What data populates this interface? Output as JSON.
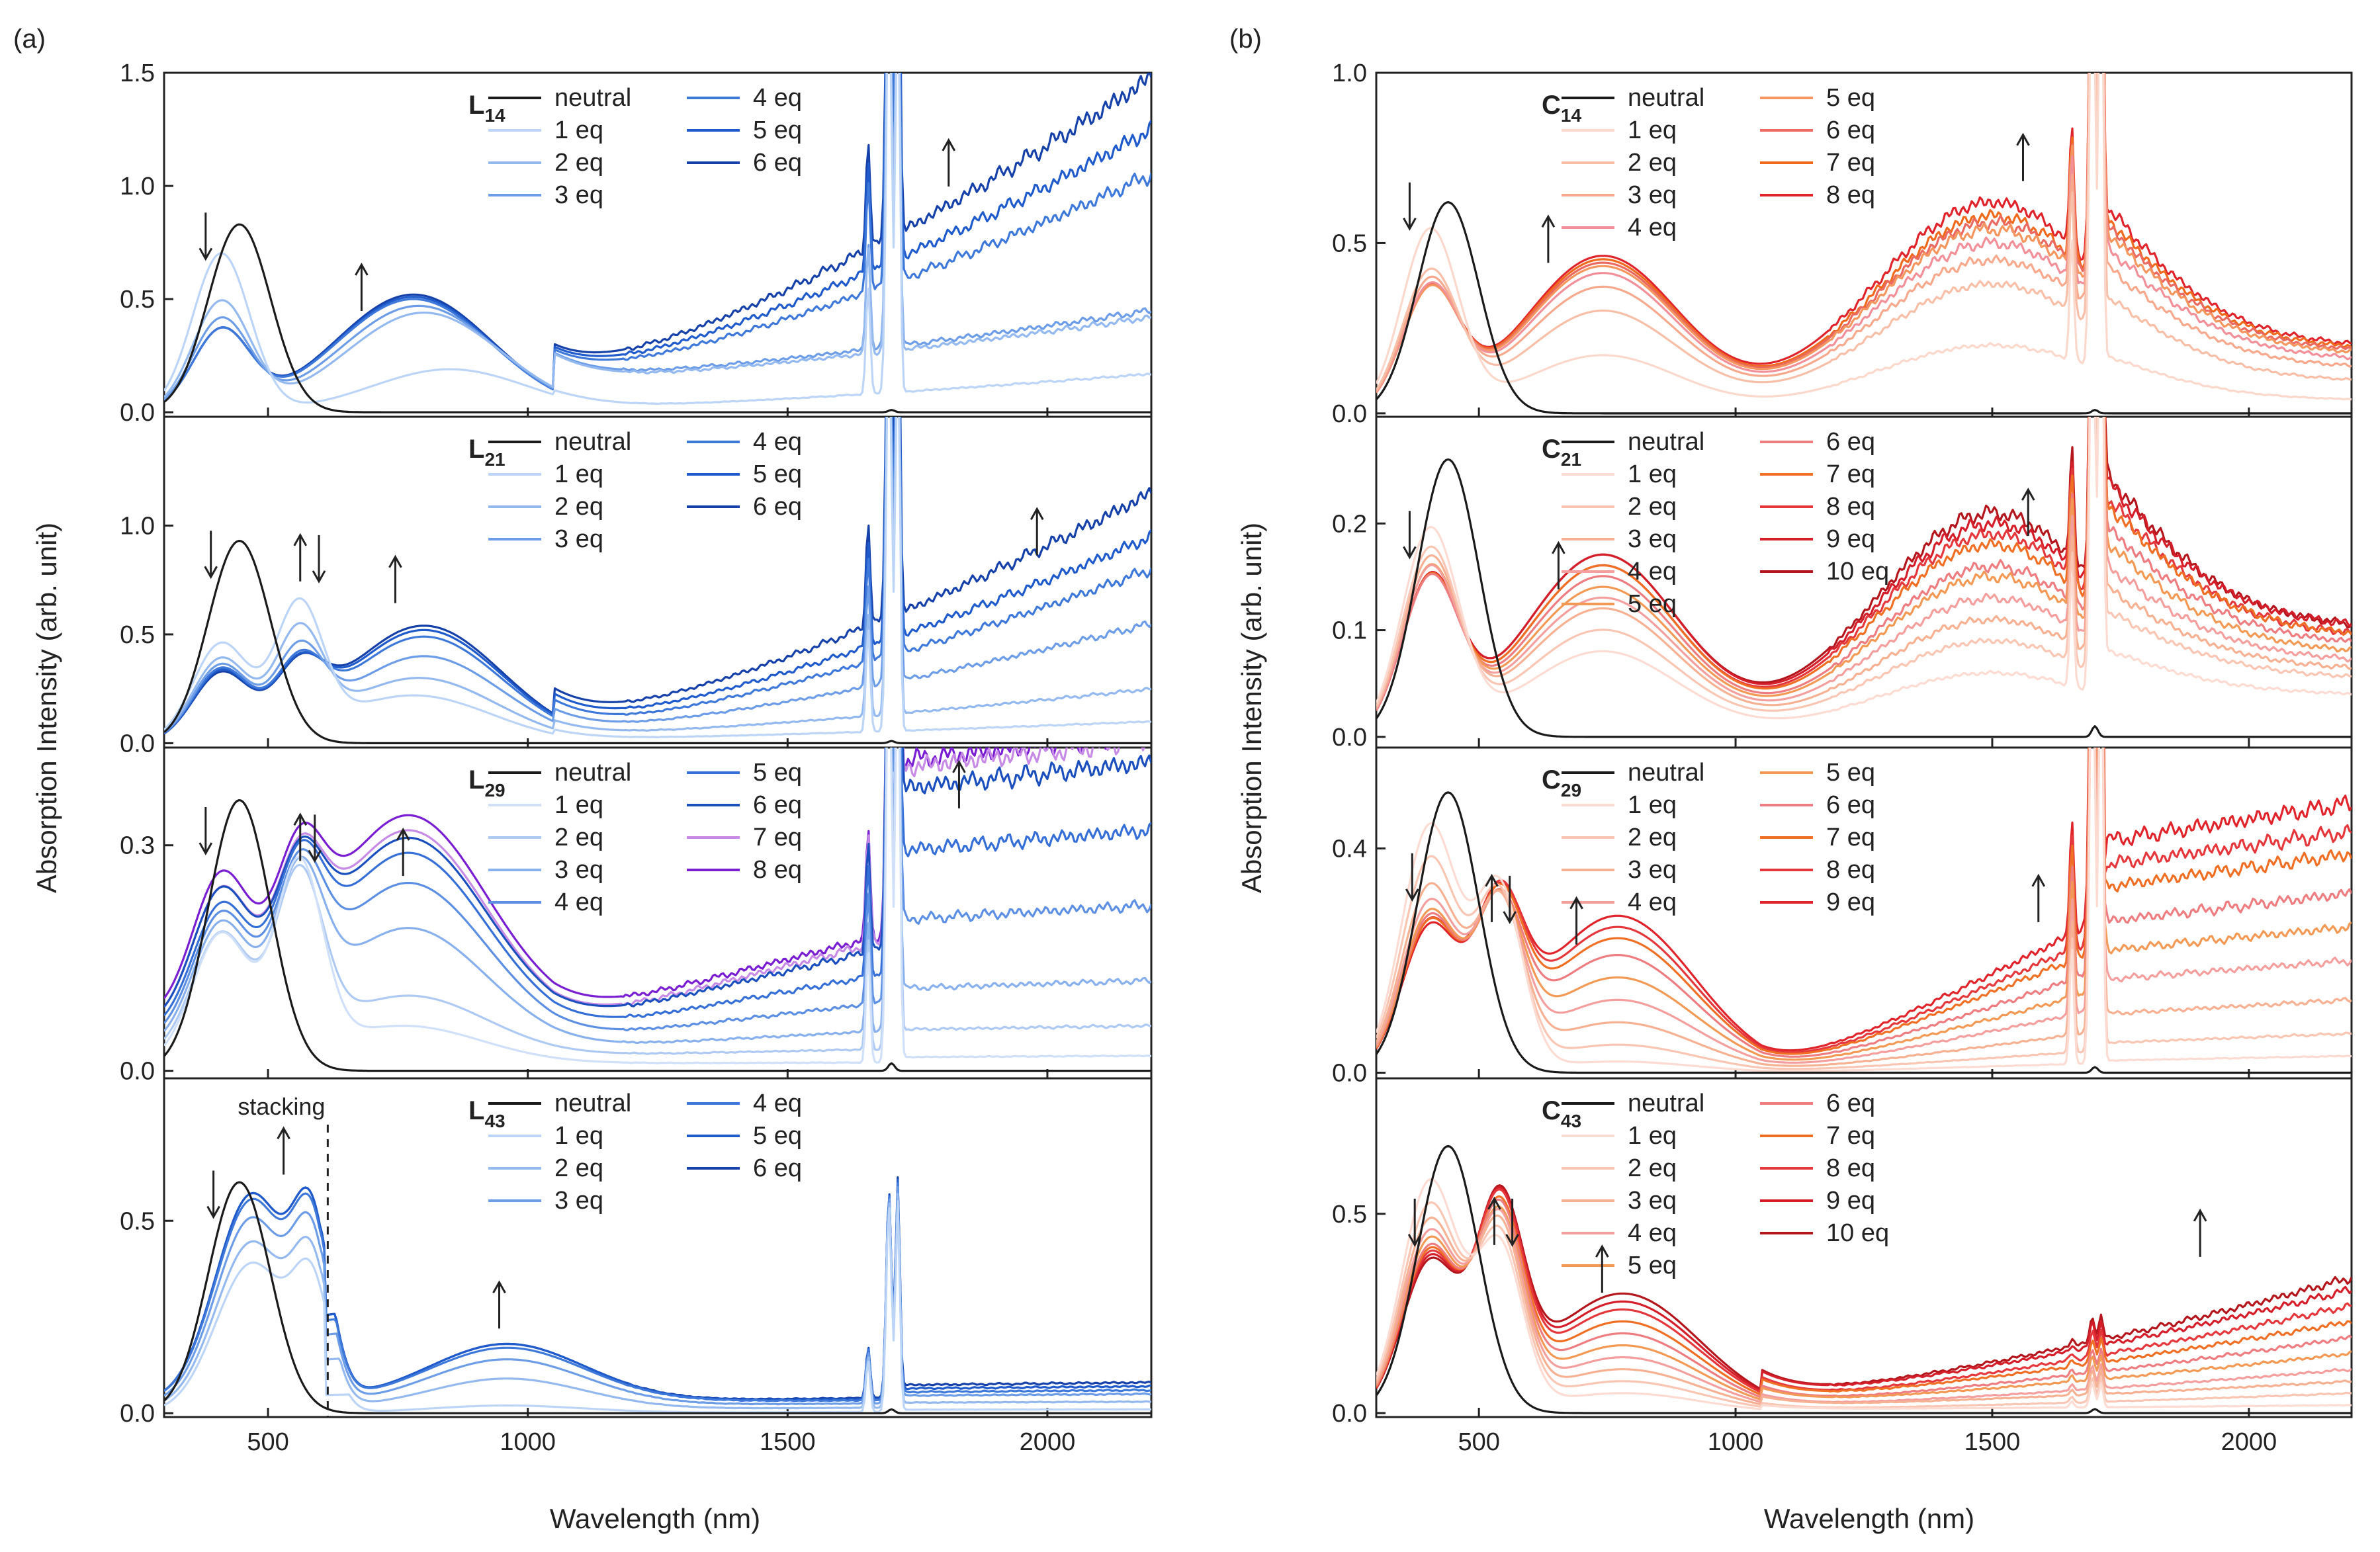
{
  "figure": {
    "panel_letters": [
      "(a)",
      "(b)"
    ],
    "xlabel": "Wavelength (nm)",
    "ylabel": "Absorption Intensity (arb. unit)"
  },
  "chart_data": [
    {
      "id": "L14",
      "column": 0,
      "row": 0,
      "type": "line",
      "label_main": "L",
      "label_sub": "14",
      "xlim": [
        300,
        2200
      ],
      "ylim": [
        -0.02,
        1.5
      ],
      "yticks": [
        0.0,
        0.5,
        1.0,
        1.5
      ],
      "ytick_labels": [
        "0.0",
        "0.5",
        "1.0",
        "1.5"
      ],
      "xticks": [
        500,
        1000,
        1500,
        2000
      ],
      "xtick_labels": [
        "500",
        "1000",
        "1500",
        "2000"
      ],
      "legend": [
        "neutral",
        "1 eq",
        "2 eq",
        "3 eq",
        "4 eq",
        "5 eq",
        "6 eq"
      ],
      "colors": [
        "#1a1a1a",
        "#bcd5f6",
        "#94b9ef",
        "#6c9de6",
        "#3e79da",
        "#1f5bcb",
        "#1541a8"
      ],
      "params": {
        "neutralPeak": 0.83,
        "neutralX": 445,
        "b1": [
          0.7,
          0.48,
          0.4,
          0.35,
          0.35,
          0.35
        ],
        "b2": [
          0.19,
          0.44,
          0.47,
          0.5,
          0.51,
          0.52
        ],
        "x2": [
          850,
          800,
          790,
          780,
          780,
          780
        ],
        "nirEnd": [
          0.17,
          0.42,
          0.45,
          1.05,
          1.25,
          1.48
        ],
        "nirStart": [
          0.02,
          0.15,
          0.16,
          0.18,
          0.19,
          0.2
        ],
        "nirShape": "rise",
        "spike": 1.6
      },
      "arrows": [
        {
          "x": 380,
          "y": 0.78,
          "dir": "down"
        },
        {
          "x": 680,
          "y": 0.55,
          "dir": "up"
        },
        {
          "x": 1810,
          "y": 1.1,
          "dir": "up"
        }
      ]
    },
    {
      "id": "L21",
      "column": 0,
      "row": 1,
      "type": "line",
      "label_main": "L",
      "label_sub": "21",
      "xlim": [
        300,
        2200
      ],
      "ylim": [
        -0.02,
        1.5
      ],
      "yticks": [
        0.0,
        0.5,
        1.0
      ],
      "ytick_labels": [
        "0.0",
        "0.5",
        "1.0"
      ],
      "xticks": [
        500,
        1000,
        1500,
        2000
      ],
      "xtick_labels": [
        "500",
        "1000",
        "1500",
        "2000"
      ],
      "legend": [
        "neutral",
        "1 eq",
        "2 eq",
        "3 eq",
        "4 eq",
        "5 eq",
        "6 eq"
      ],
      "colors": [
        "#1a1a1a",
        "#bcd5f6",
        "#94b9ef",
        "#6c9de6",
        "#3e79da",
        "#1f5bcb",
        "#1541a8"
      ],
      "params": {
        "neutralPeak": 0.93,
        "neutralX": 445,
        "b1": [
          0.45,
          0.38,
          0.35,
          0.33,
          0.32,
          0.31
        ],
        "b2": [
          0.22,
          0.3,
          0.4,
          0.49,
          0.52,
          0.54
        ],
        "x2": [
          780,
          790,
          800,
          800,
          800,
          800
        ],
        "x1b": 560,
        "b1b": [
          0.58,
          0.45,
          0.35,
          0.28,
          0.26,
          0.25
        ],
        "nirEnd": [
          0.1,
          0.25,
          0.55,
          0.8,
          0.95,
          1.15
        ],
        "nirStart": [
          0.02,
          0.04,
          0.06,
          0.08,
          0.1,
          0.12
        ],
        "nirShape": "rise",
        "spike": 1.6
      },
      "arrows": [
        {
          "x": 390,
          "y": 0.87,
          "dir": "down"
        },
        {
          "x": 562,
          "y": 0.85,
          "dir": "up"
        },
        {
          "x": 598,
          "y": 0.85,
          "dir": "down"
        },
        {
          "x": 745,
          "y": 0.75,
          "dir": "up"
        },
        {
          "x": 1980,
          "y": 0.97,
          "dir": "up"
        }
      ]
    },
    {
      "id": "L29",
      "column": 0,
      "row": 2,
      "type": "line",
      "label_main": "L",
      "label_sub": "29",
      "xlim": [
        300,
        2200
      ],
      "ylim": [
        -0.01,
        0.43
      ],
      "yticks": [
        0.0,
        0.3
      ],
      "ytick_labels": [
        "0.0",
        "0.3"
      ],
      "xticks": [
        500,
        1000,
        1500,
        2000
      ],
      "xtick_labels": [
        "500",
        "1000",
        "1500",
        "2000"
      ],
      "legend": [
        "neutral",
        "1 eq",
        "2 eq",
        "3 eq",
        "4 eq",
        "5 eq",
        "6 eq",
        "7 eq",
        "8 eq"
      ],
      "colors": [
        "#1a1a1a",
        "#cfe0f8",
        "#aecaf3",
        "#88b0ec",
        "#5d90e2",
        "#3670d6",
        "#1b4fbd",
        "#c78be6",
        "#7a1ed1"
      ],
      "params": {
        "neutralPeak": 0.36,
        "neutralX": 445,
        "b1": [
          0.17,
          0.16,
          0.16,
          0.16,
          0.16,
          0.17,
          0.17,
          0.18
        ],
        "b2": [
          0.05,
          0.08,
          0.16,
          0.21,
          0.24,
          0.25,
          0.26,
          0.27
        ],
        "x2": [
          760,
          770,
          770,
          770,
          770,
          770,
          770,
          770
        ],
        "x1b": 560,
        "b1b": [
          0.25,
          0.22,
          0.19,
          0.17,
          0.16,
          0.15,
          0.15,
          0.15
        ],
        "nirEnd": [
          0.02,
          0.06,
          0.12,
          0.22,
          0.32,
          0.41,
          0.44,
          0.45
        ],
        "nirStart": [
          0.01,
          0.02,
          0.03,
          0.04,
          0.05,
          0.06,
          0.06,
          0.07
        ],
        "nirShape": "flat",
        "spike": 0.5
      },
      "arrows": [
        {
          "x": 380,
          "y": 0.32,
          "dir": "down"
        },
        {
          "x": 562,
          "y": 0.31,
          "dir": "up"
        },
        {
          "x": 590,
          "y": 0.31,
          "dir": "down"
        },
        {
          "x": 760,
          "y": 0.29,
          "dir": "up"
        },
        {
          "x": 1830,
          "y": 0.38,
          "dir": "up"
        }
      ]
    },
    {
      "id": "L43",
      "column": 0,
      "row": 3,
      "type": "line",
      "label_main": "L",
      "label_sub": "43",
      "xlim": [
        300,
        2200
      ],
      "ylim": [
        -0.01,
        0.87
      ],
      "yticks": [
        0.0,
        0.5
      ],
      "ytick_labels": [
        "0.0",
        "0.5"
      ],
      "xticks": [
        500,
        1000,
        1500,
        2000
      ],
      "xtick_labels": [
        "500",
        "1000",
        "1500",
        "2000"
      ],
      "legend": [
        "neutral",
        "1 eq",
        "2 eq",
        "3 eq",
        "4 eq",
        "5 eq",
        "6 eq"
      ],
      "colors": [
        "#1a1a1a",
        "#bcd5f6",
        "#94b9ef",
        "#6c9de6",
        "#3e79da",
        "#1f5bcb",
        "#1541a8"
      ],
      "params": {
        "neutralPeak": 0.6,
        "neutralX": 445,
        "stack": [
          0.52,
          0.58,
          0.65,
          0.7,
          0.72,
          0.72
        ],
        "b2": [
          0.02,
          0.08,
          0.12,
          0.14,
          0.15,
          0.15
        ],
        "x2": [
          960,
          960,
          960,
          960,
          960,
          960
        ],
        "nirEnd": [
          0.01,
          0.03,
          0.05,
          0.06,
          0.07,
          0.08
        ],
        "nirStart": [
          0.0,
          0.01,
          0.02,
          0.03,
          0.03,
          0.03
        ],
        "nirShape": "flat",
        "spike": 0.45
      },
      "annotations": [
        "stacking"
      ],
      "arrows": [
        {
          "x": 395,
          "y": 0.57,
          "dir": "down"
        },
        {
          "x": 530,
          "y": 0.68,
          "dir": "up"
        },
        {
          "x": 945,
          "y": 0.28,
          "dir": "up"
        }
      ]
    },
    {
      "id": "C14",
      "column": 1,
      "row": 0,
      "type": "line",
      "label_main": "C",
      "label_sub": "14",
      "xlim": [
        300,
        2200
      ],
      "ylim": [
        -0.01,
        1.0
      ],
      "yticks": [
        0.0,
        0.5,
        1.0
      ],
      "ytick_labels": [
        "0.0",
        "0.5",
        "1.0"
      ],
      "xticks": [
        500,
        1000,
        1500,
        2000
      ],
      "xtick_labels": [
        "500",
        "1000",
        "1500",
        "2000"
      ],
      "legend": [
        "neutral",
        "1 eq",
        "2 eq",
        "3 eq",
        "4 eq",
        "5 eq",
        "6 eq",
        "7 eq",
        "8 eq"
      ],
      "colors": [
        "#1a1a1a",
        "#fbd8cc",
        "#f7bfa8",
        "#f6a98c",
        "#f2909a",
        "#f4965e",
        "#ea6a62",
        "#ef6a1c",
        "#e0242c"
      ],
      "params": {
        "neutralPeak": 0.62,
        "neutralX": 440,
        "b1": [
          0.53,
          0.4,
          0.37,
          0.35,
          0.34,
          0.34,
          0.34,
          0.34
        ],
        "b2": [
          0.17,
          0.3,
          0.37,
          0.41,
          0.43,
          0.44,
          0.45,
          0.46
        ],
        "x2": [
          740,
          740,
          740,
          740,
          740,
          740,
          740,
          740
        ],
        "nirEnd": [
          0.05,
          0.12,
          0.17,
          0.2,
          0.22,
          0.23,
          0.24,
          0.25
        ],
        "nirPeak": [
          0.2,
          0.38,
          0.45,
          0.5,
          0.54,
          0.56,
          0.58,
          0.62
        ],
        "nirShape": "hump",
        "spike": 1.2
      },
      "arrows": [
        {
          "x": 365,
          "y": 0.61,
          "dir": "down"
        },
        {
          "x": 635,
          "y": 0.51,
          "dir": "up"
        },
        {
          "x": 1560,
          "y": 0.75,
          "dir": "up"
        }
      ]
    },
    {
      "id": "C21",
      "column": 1,
      "row": 1,
      "type": "line",
      "label_main": "C",
      "label_sub": "21",
      "xlim": [
        300,
        2200
      ],
      "ylim": [
        -0.01,
        0.3
      ],
      "yticks": [
        0.0,
        0.1,
        0.2
      ],
      "ytick_labels": [
        "0.0",
        "0.1",
        "0.2"
      ],
      "xticks": [
        500,
        1000,
        1500,
        2000
      ],
      "xtick_labels": [
        "500",
        "1000",
        "1500",
        "2000"
      ],
      "legend": [
        "neutral",
        "1 eq",
        "2 eq",
        "3 eq",
        "4 eq",
        "5 eq",
        "6 eq",
        "7 eq",
        "8 eq",
        "9 eq",
        "10 eq"
      ],
      "colors": [
        "#1a1a1a",
        "#fcdcd2",
        "#f9c6b4",
        "#f6b193",
        "#f39f9e",
        "#f29a55",
        "#ed7d80",
        "#ef6f24",
        "#e5383c",
        "#d41f2b",
        "#b3161c"
      ],
      "params": {
        "neutralPeak": 0.26,
        "neutralX": 440,
        "b1": [
          0.19,
          0.17,
          0.16,
          0.15,
          0.15,
          0.14,
          0.14,
          0.14,
          0.14,
          0.14
        ],
        "b2": [
          0.08,
          0.1,
          0.12,
          0.13,
          0.14,
          0.15,
          0.16,
          0.16,
          0.17,
          0.17
        ],
        "x2": [
          740,
          740,
          740,
          740,
          740,
          740,
          740,
          740,
          740,
          740
        ],
        "nirEnd": [
          0.05,
          0.07,
          0.08,
          0.09,
          0.1,
          0.11,
          0.12,
          0.12,
          0.13,
          0.13
        ],
        "nirPeak": [
          0.06,
          0.09,
          0.11,
          0.13,
          0.15,
          0.16,
          0.18,
          0.19,
          0.2,
          0.21
        ],
        "nirShape": "hump",
        "spike": 0.35
      },
      "arrows": [
        {
          "x": 365,
          "y": 0.19,
          "dir": "down"
        },
        {
          "x": 655,
          "y": 0.16,
          "dir": "up"
        },
        {
          "x": 1570,
          "y": 0.21,
          "dir": "up"
        }
      ]
    },
    {
      "id": "C29",
      "column": 1,
      "row": 2,
      "type": "line",
      "label_main": "C",
      "label_sub": "29",
      "xlim": [
        300,
        2200
      ],
      "ylim": [
        -0.01,
        0.58
      ],
      "yticks": [
        0.0,
        0.4
      ],
      "ytick_labels": [
        "0.0",
        "0.4"
      ],
      "xticks": [
        500,
        1000,
        1500,
        2000
      ],
      "xtick_labels": [
        "500",
        "1000",
        "1500",
        "2000"
      ],
      "legend": [
        "neutral",
        "1 eq",
        "2 eq",
        "3 eq",
        "4 eq",
        "5 eq",
        "6 eq",
        "7 eq",
        "8 eq",
        "9 eq"
      ],
      "colors": [
        "#1a1a1a",
        "#fcdcd2",
        "#f9c6b4",
        "#f6b193",
        "#f39f9e",
        "#f29a55",
        "#ed7d80",
        "#ef6f24",
        "#e5383c",
        "#e0242c"
      ],
      "params": {
        "neutralPeak": 0.5,
        "neutralX": 440,
        "b1": [
          0.44,
          0.38,
          0.33,
          0.3,
          0.28,
          0.27,
          0.26,
          0.26,
          0.25
        ],
        "b2": [
          0.02,
          0.05,
          0.09,
          0.13,
          0.17,
          0.21,
          0.24,
          0.26,
          0.28
        ],
        "x2": [
          770,
          770,
          770,
          770,
          770,
          770,
          770,
          770,
          770
        ],
        "x1b": 540,
        "b1b": [
          0.32,
          0.3,
          0.28,
          0.27,
          0.26,
          0.25,
          0.25,
          0.25,
          0.24
        ],
        "nirEnd": [
          0.01,
          0.03,
          0.07,
          0.12,
          0.16,
          0.2,
          0.25,
          0.29,
          0.32
        ],
        "nirStart": [
          0.01,
          0.02,
          0.03,
          0.04,
          0.05,
          0.06,
          0.07,
          0.07,
          0.08
        ],
        "nirShape": "plateau",
        "spike": 0.7
      },
      "arrows": [
        {
          "x": 370,
          "y": 0.35,
          "dir": "down"
        },
        {
          "x": 525,
          "y": 0.31,
          "dir": "up"
        },
        {
          "x": 560,
          "y": 0.31,
          "dir": "down"
        },
        {
          "x": 690,
          "y": 0.27,
          "dir": "up"
        },
        {
          "x": 1590,
          "y": 0.31,
          "dir": "up"
        }
      ]
    },
    {
      "id": "C43",
      "column": 1,
      "row": 3,
      "type": "line",
      "label_main": "C",
      "label_sub": "43",
      "xlim": [
        300,
        2200
      ],
      "ylim": [
        -0.01,
        0.84
      ],
      "yticks": [
        0.0,
        0.5
      ],
      "ytick_labels": [
        "0.0",
        "0.5"
      ],
      "xticks": [
        500,
        1000,
        1500,
        2000
      ],
      "xtick_labels": [
        "500",
        "1000",
        "1500",
        "2000"
      ],
      "legend": [
        "neutral",
        "1 eq",
        "2 eq",
        "3 eq",
        "4 eq",
        "5 eq",
        "6 eq",
        "7 eq",
        "8 eq",
        "9 eq",
        "10 eq"
      ],
      "colors": [
        "#1a1a1a",
        "#fcdcd2",
        "#f9c6b4",
        "#f6b193",
        "#f39f9e",
        "#f29a55",
        "#ed7d80",
        "#ef6f24",
        "#e5383c",
        "#d41f2b",
        "#b3161c"
      ],
      "params": {
        "neutralPeak": 0.67,
        "neutralX": 440,
        "b1": [
          0.58,
          0.52,
          0.48,
          0.45,
          0.43,
          0.41,
          0.4,
          0.39,
          0.38,
          0.37
        ],
        "b2": [
          0.05,
          0.08,
          0.11,
          0.14,
          0.17,
          0.2,
          0.23,
          0.26,
          0.28,
          0.3
        ],
        "x2": [
          780,
          780,
          780,
          780,
          780,
          780,
          780,
          780,
          780,
          780
        ],
        "x1b": 540,
        "b1b": [
          0.4,
          0.42,
          0.44,
          0.45,
          0.45,
          0.46,
          0.46,
          0.47,
          0.47,
          0.47
        ],
        "nirEnd": [
          0.02,
          0.05,
          0.08,
          0.11,
          0.15,
          0.19,
          0.23,
          0.27,
          0.31,
          0.34
        ],
        "nirStart": [
          0.01,
          0.01,
          0.02,
          0.02,
          0.03,
          0.03,
          0.04,
          0.04,
          0.05,
          0.05
        ],
        "nirShape": "rise",
        "spike": 0.05
      },
      "arrows": [
        {
          "x": 375,
          "y": 0.48,
          "dir": "down"
        },
        {
          "x": 530,
          "y": 0.48,
          "dir": "up"
        },
        {
          "x": 565,
          "y": 0.48,
          "dir": "down"
        },
        {
          "x": 740,
          "y": 0.36,
          "dir": "up"
        },
        {
          "x": 1905,
          "y": 0.45,
          "dir": "up"
        }
      ]
    }
  ]
}
